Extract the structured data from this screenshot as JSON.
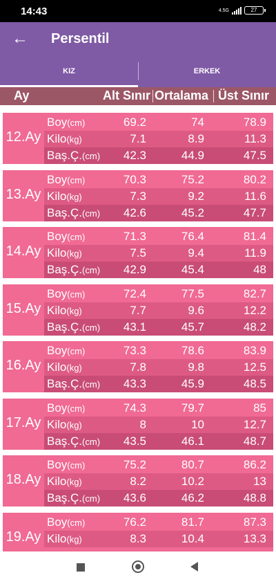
{
  "status_bar": {
    "time": "14:43",
    "network": "4.5G",
    "battery": "27"
  },
  "app_bar": {
    "title": "Persentil",
    "back_icon": "arrow-left-icon"
  },
  "tabs": [
    {
      "label": "KIZ",
      "active": true
    },
    {
      "label": "ERKEK",
      "active": false
    }
  ],
  "header": {
    "ay": "Ay",
    "alt_sinir": "Alt Sınır",
    "ortalama": "Ortalama",
    "ust_sinir": "Üst Sınır"
  },
  "metrics": [
    {
      "name": "Boy",
      "unit": "(cm)"
    },
    {
      "name": "Kilo",
      "unit": "(kg)"
    },
    {
      "name": "Baş.Ç.",
      "unit": "(cm)"
    }
  ],
  "months": [
    {
      "label": "12.Ay",
      "rows": [
        [
          "69.2",
          "74",
          "78.9"
        ],
        [
          "7.1",
          "8.9",
          "11.3"
        ],
        [
          "42.3",
          "44.9",
          "47.5"
        ]
      ]
    },
    {
      "label": "13.Ay",
      "rows": [
        [
          "70.3",
          "75.2",
          "80.2"
        ],
        [
          "7.3",
          "9.2",
          "11.6"
        ],
        [
          "42.6",
          "45.2",
          "47.7"
        ]
      ]
    },
    {
      "label": "14.Ay",
      "rows": [
        [
          "71.3",
          "76.4",
          "81.4"
        ],
        [
          "7.5",
          "9.4",
          "11.9"
        ],
        [
          "42.9",
          "45.4",
          "48"
        ]
      ]
    },
    {
      "label": "15.Ay",
      "rows": [
        [
          "72.4",
          "77.5",
          "82.7"
        ],
        [
          "7.7",
          "9.6",
          "12.2"
        ],
        [
          "43.1",
          "45.7",
          "48.2"
        ]
      ]
    },
    {
      "label": "16.Ay",
      "rows": [
        [
          "73.3",
          "78.6",
          "83.9"
        ],
        [
          "7.8",
          "9.8",
          "12.5"
        ],
        [
          "43.3",
          "45.9",
          "48.5"
        ]
      ]
    },
    {
      "label": "17.Ay",
      "rows": [
        [
          "74.3",
          "79.7",
          "85"
        ],
        [
          "8",
          "10",
          "12.7"
        ],
        [
          "43.5",
          "46.1",
          "48.7"
        ]
      ]
    },
    {
      "label": "18.Ay",
      "rows": [
        [
          "75.2",
          "80.7",
          "86.2"
        ],
        [
          "8.2",
          "10.2",
          "13"
        ],
        [
          "43.6",
          "46.2",
          "48.8"
        ]
      ]
    },
    {
      "label": "19.Ay",
      "rows": [
        [
          "76.2",
          "81.7",
          "87.3"
        ],
        [
          "8.3",
          "10.4",
          "13.3"
        ]
      ]
    }
  ],
  "nav_bar": {
    "icons": [
      "recent-apps-icon",
      "home-icon",
      "back-icon"
    ]
  }
}
